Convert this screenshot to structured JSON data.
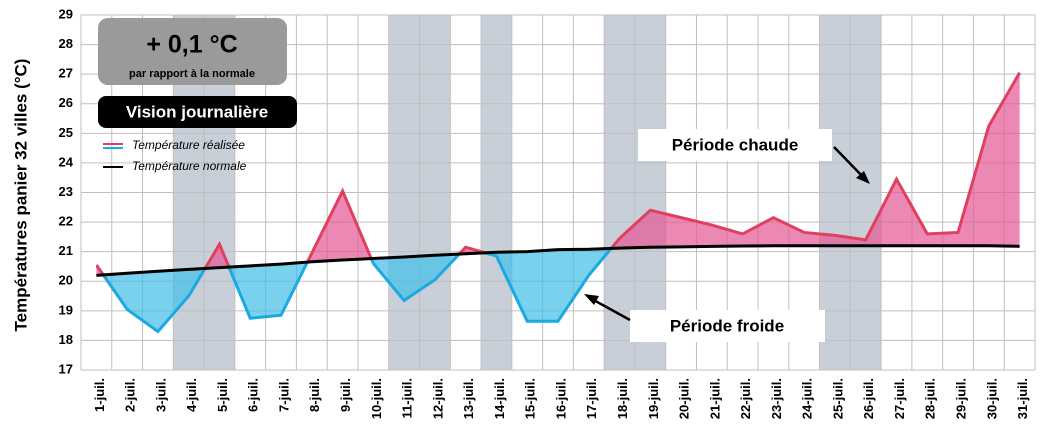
{
  "chart_data": {
    "type": "line",
    "ylabel": "Températures panier 32 villes (°C)",
    "categories": [
      "1-juil.",
      "2-juil.",
      "3-juil.",
      "4-juil.",
      "5-juil.",
      "6-juil.",
      "7-juil.",
      "8-juil.",
      "9-juil.",
      "10-juil.",
      "11-juil.",
      "12-juil.",
      "13-juil.",
      "14-juil.",
      "15-juil.",
      "16-juil.",
      "17-juil.",
      "18-juil.",
      "19-juil.",
      "20-juil.",
      "21-juil.",
      "22-juil.",
      "23-juil.",
      "24-juil.",
      "25-juil.",
      "26-juil.",
      "27-juil.",
      "28-juil.",
      "29-juil.",
      "30-juil.",
      "31-juil."
    ],
    "series": [
      {
        "name": "Température réalisée",
        "color": "#e0405f",
        "color_below": "#1aa9e0",
        "values": [
          20.55,
          19.05,
          18.3,
          19.5,
          21.25,
          18.75,
          18.85,
          20.95,
          23.05,
          20.6,
          19.35,
          20.05,
          21.15,
          20.85,
          18.65,
          18.65,
          20.2,
          21.45,
          22.4,
          22.15,
          21.9,
          21.6,
          22.15,
          21.65,
          21.55,
          21.4,
          23.45,
          21.6,
          21.65,
          25.25,
          27.05
        ]
      },
      {
        "name": "Température normale",
        "color": "#000000",
        "values": [
          20.2,
          20.27,
          20.34,
          20.4,
          20.46,
          20.52,
          20.58,
          20.66,
          20.72,
          20.77,
          20.82,
          20.88,
          20.93,
          20.98,
          21.0,
          21.07,
          21.08,
          21.12,
          21.15,
          21.16,
          21.18,
          21.19,
          21.2,
          21.2,
          21.2,
          21.2,
          21.2,
          21.2,
          21.2,
          21.2,
          21.18
        ]
      }
    ],
    "shaded_categories": [
      "4-juil.",
      "5-juil.",
      "11-juil.",
      "12-juil.",
      "14-juil.",
      "18-juil.",
      "19-juil.",
      "25-juil.",
      "26-juil."
    ],
    "ylim": [
      17,
      29
    ],
    "yticks": [
      17,
      18,
      19,
      20,
      21,
      22,
      23,
      24,
      25,
      26,
      27,
      28,
      29
    ],
    "grid": true,
    "summary": {
      "value": "+ 0,1 °C",
      "caption": "par rapport à la normale"
    },
    "mode": "Vision journalière",
    "annotations": [
      "Période chaude",
      "Période froide"
    ]
  }
}
